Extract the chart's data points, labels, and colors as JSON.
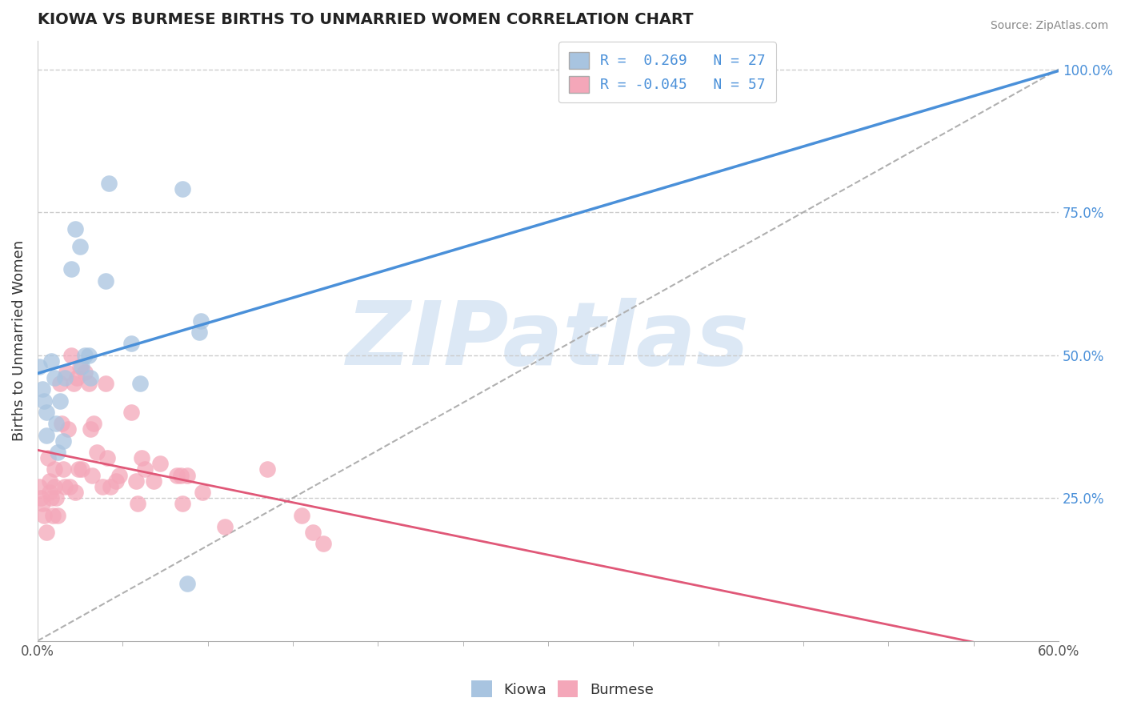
{
  "title": "KIOWA VS BURMESE BIRTHS TO UNMARRIED WOMEN CORRELATION CHART",
  "source": "Source: ZipAtlas.com",
  "ylabel": "Births to Unmarried Women",
  "xlim": [
    0.0,
    0.6
  ],
  "ylim": [
    0.0,
    1.05
  ],
  "xtick_vals": [
    0.0,
    0.6
  ],
  "xtick_labels": [
    "0.0%",
    "60.0%"
  ],
  "ytick_labels_right": [
    "25.0%",
    "50.0%",
    "75.0%",
    "100.0%"
  ],
  "ytick_vals_right": [
    0.25,
    0.5,
    0.75,
    1.0
  ],
  "kiowa_R": 0.269,
  "kiowa_N": 27,
  "burmese_R": -0.045,
  "burmese_N": 57,
  "kiowa_color": "#a8c4e0",
  "burmese_color": "#f4a7b9",
  "kiowa_line_color": "#4a90d9",
  "burmese_line_color": "#e05878",
  "grid_color": "#cccccc",
  "watermark": "ZIPatlas",
  "watermark_color": "#dce8f5",
  "kiowa_x": [
    0.001,
    0.003,
    0.004,
    0.005,
    0.005,
    0.008,
    0.01,
    0.011,
    0.012,
    0.013,
    0.015,
    0.016,
    0.02,
    0.022,
    0.025,
    0.026,
    0.028,
    0.03,
    0.031,
    0.04,
    0.042,
    0.055,
    0.06,
    0.085,
    0.088,
    0.095,
    0.096
  ],
  "kiowa_y": [
    0.48,
    0.44,
    0.42,
    0.4,
    0.36,
    0.49,
    0.46,
    0.38,
    0.33,
    0.42,
    0.35,
    0.46,
    0.65,
    0.72,
    0.69,
    0.48,
    0.5,
    0.5,
    0.46,
    0.63,
    0.8,
    0.52,
    0.45,
    0.79,
    0.1,
    0.54,
    0.56
  ],
  "burmese_x": [
    0.001,
    0.002,
    0.003,
    0.004,
    0.005,
    0.006,
    0.007,
    0.007,
    0.008,
    0.009,
    0.01,
    0.01,
    0.011,
    0.012,
    0.013,
    0.014,
    0.015,
    0.016,
    0.017,
    0.018,
    0.019,
    0.02,
    0.021,
    0.022,
    0.023,
    0.024,
    0.025,
    0.026,
    0.028,
    0.03,
    0.031,
    0.032,
    0.033,
    0.035,
    0.038,
    0.04,
    0.041,
    0.043,
    0.046,
    0.048,
    0.055,
    0.058,
    0.059,
    0.061,
    0.063,
    0.068,
    0.072,
    0.082,
    0.084,
    0.085,
    0.088,
    0.097,
    0.11,
    0.135,
    0.155,
    0.162,
    0.168
  ],
  "burmese_y": [
    0.27,
    0.25,
    0.24,
    0.22,
    0.19,
    0.32,
    0.28,
    0.26,
    0.25,
    0.22,
    0.3,
    0.27,
    0.25,
    0.22,
    0.45,
    0.38,
    0.3,
    0.27,
    0.47,
    0.37,
    0.27,
    0.5,
    0.45,
    0.26,
    0.46,
    0.3,
    0.48,
    0.3,
    0.47,
    0.45,
    0.37,
    0.29,
    0.38,
    0.33,
    0.27,
    0.45,
    0.32,
    0.27,
    0.28,
    0.29,
    0.4,
    0.28,
    0.24,
    0.32,
    0.3,
    0.28,
    0.31,
    0.29,
    0.29,
    0.24,
    0.29,
    0.26,
    0.2,
    0.3,
    0.22,
    0.19,
    0.17
  ]
}
